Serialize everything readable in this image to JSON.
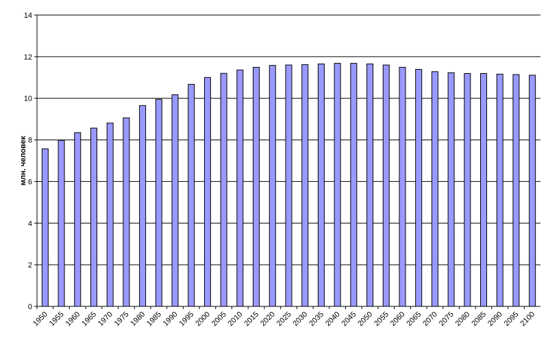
{
  "chart_data": {
    "type": "bar",
    "title": "",
    "xlabel": "",
    "ylabel": "млн. человек",
    "ylim": [
      0,
      14
    ],
    "yticks": [
      0,
      2,
      4,
      6,
      8,
      10,
      12,
      14
    ],
    "grid": true,
    "legend": "none",
    "bar_color": "#9999ff",
    "categories": [
      "1950",
      "1955",
      "1960",
      "1965",
      "1970",
      "1975",
      "1980",
      "1985",
      "1990",
      "1995",
      "2000",
      "2005",
      "2010",
      "2015",
      "2020",
      "2025",
      "2030",
      "2035",
      "2040",
      "2045",
      "2050",
      "2055",
      "2060",
      "2065",
      "2070",
      "2075",
      "2080",
      "2085",
      "2090",
      "2095",
      "2100"
    ],
    "values": [
      7.57,
      7.98,
      8.35,
      8.57,
      8.81,
      9.06,
      9.65,
      9.95,
      10.17,
      10.67,
      11.0,
      11.2,
      11.36,
      11.49,
      11.58,
      11.6,
      11.62,
      11.65,
      11.68,
      11.68,
      11.65,
      11.6,
      11.49,
      11.39,
      11.28,
      11.23,
      11.19,
      11.19,
      11.16,
      11.14,
      11.11
    ]
  }
}
